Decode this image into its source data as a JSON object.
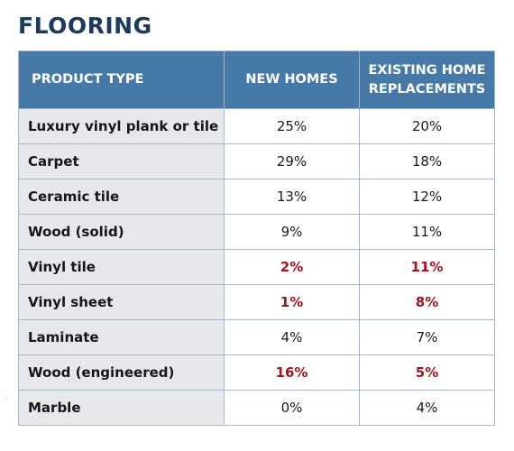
{
  "title": "FLOORING",
  "headers": {
    "product_type": "PRODUCT TYPE",
    "new_homes": "NEW HOMES",
    "existing_line1": "EXISTING HOME",
    "existing_line2": "REPLACEMENTS"
  },
  "rows": [
    {
      "product": "Luxury vinyl plank or tile",
      "new_homes": "25%",
      "existing": "20%",
      "highlight": false
    },
    {
      "product": "Carpet",
      "new_homes": "29%",
      "existing": "18%",
      "highlight": false
    },
    {
      "product": "Ceramic tile",
      "new_homes": "13%",
      "existing": "12%",
      "highlight": false
    },
    {
      "product": "Wood (solid)",
      "new_homes": "9%",
      "existing": "11%",
      "highlight": false
    },
    {
      "product": "Vinyl tile",
      "new_homes": "2%",
      "existing": "11%",
      "highlight": true
    },
    {
      "product": "Vinyl sheet",
      "new_homes": "1%",
      "existing": "8%",
      "highlight": true
    },
    {
      "product": "Laminate",
      "new_homes": "4%",
      "existing": "7%",
      "highlight": false
    },
    {
      "product": "Wood (engineered)",
      "new_homes": "16%",
      "existing": "5%",
      "highlight": true
    },
    {
      "product": "Marble",
      "new_homes": "0%",
      "existing": "4%",
      "highlight": false
    }
  ],
  "colors": {
    "title": "#1d3a5c",
    "header_bg": "#4679a8",
    "label_bg": "#e6e8eb",
    "highlight_text": "#a4131c"
  }
}
